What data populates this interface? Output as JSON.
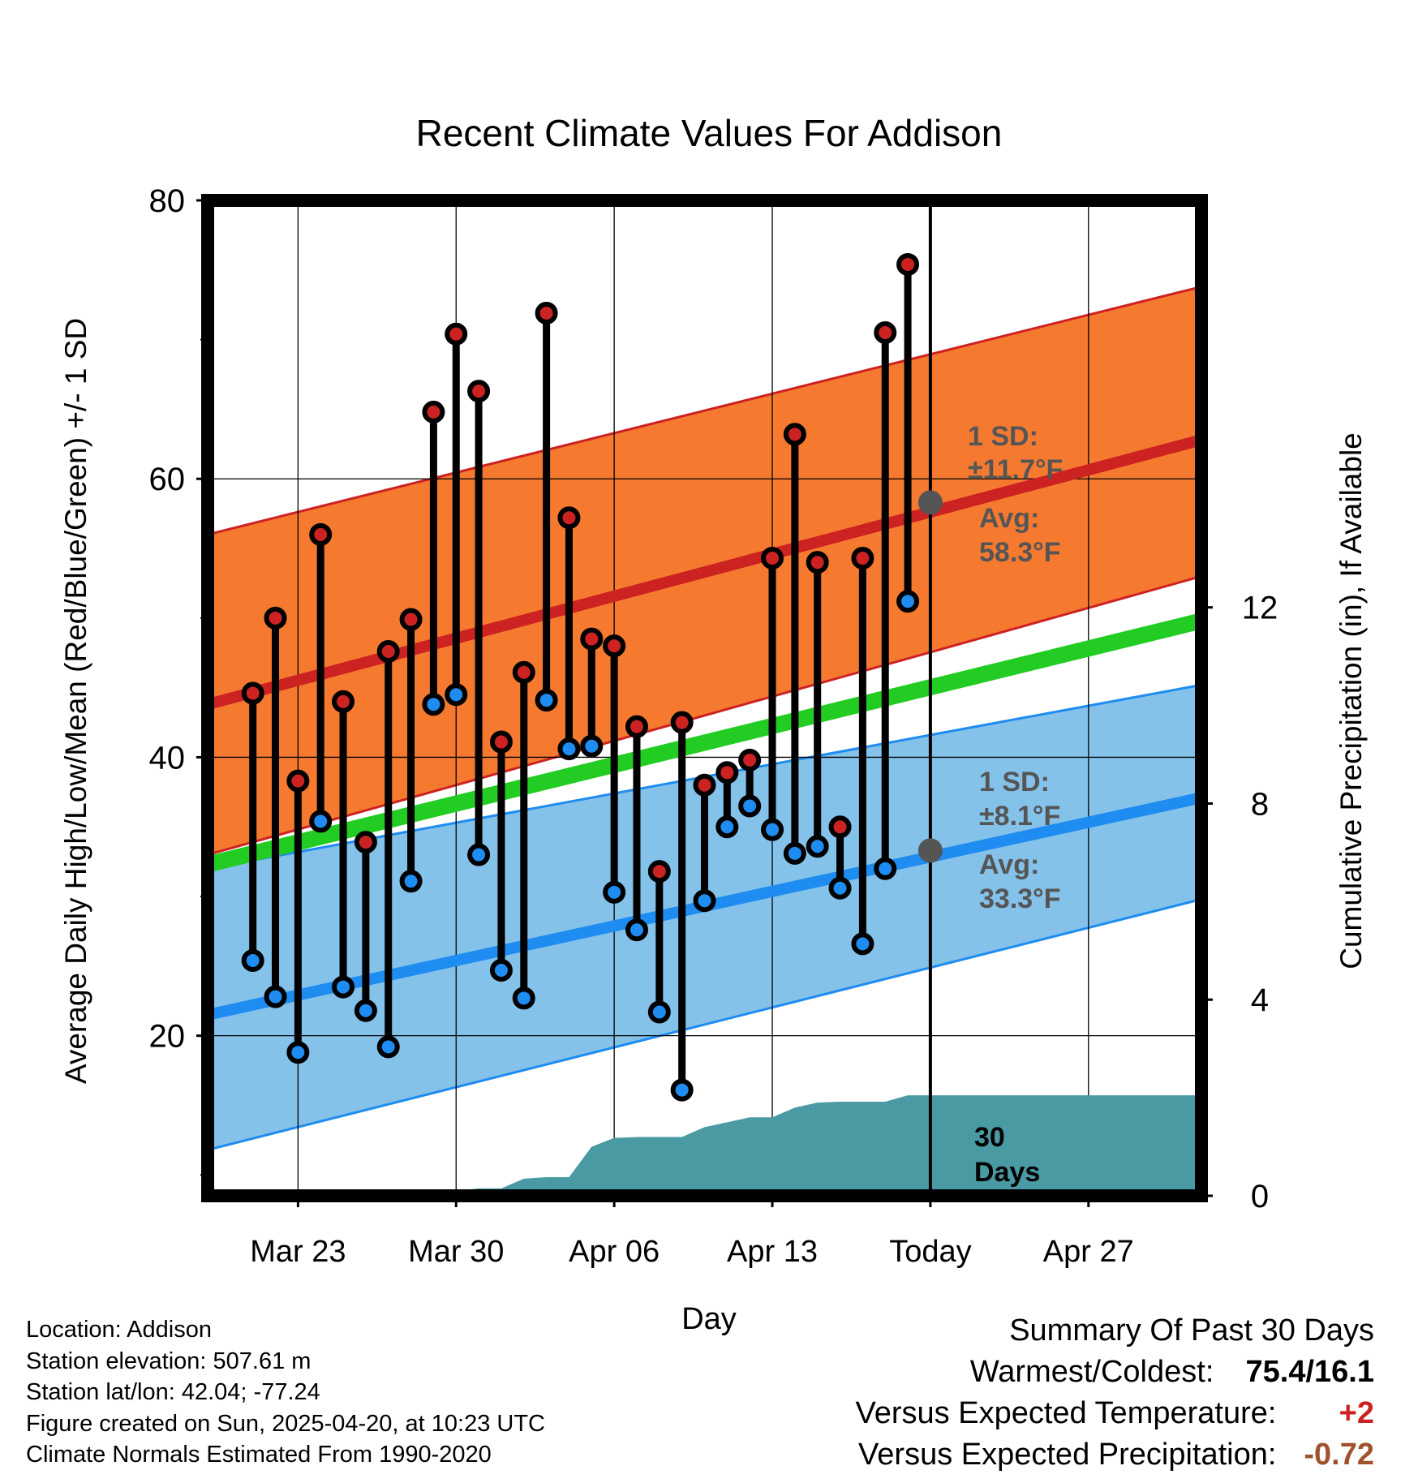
{
  "chart_data": {
    "type": "line",
    "title": "Recent Climate Values For Addison",
    "xlabel": "Day",
    "ylabel": "Average Daily High/Low/Mean (Red/Blue/Green) +/- 1 SD",
    "y2label": "Cumulative Precipitation (in), If Available",
    "xlim": [
      "2025-03-19",
      "2025-05-02"
    ],
    "ylim": [
      8.5,
      80
    ],
    "y2lim": [
      0,
      20.3
    ],
    "y_ticks": [
      20,
      40,
      60,
      80
    ],
    "y2_ticks": [
      0,
      4,
      8,
      12
    ],
    "x_ticks": [
      {
        "date": "2025-03-23",
        "label": "Mar 23"
      },
      {
        "date": "2025-03-30",
        "label": "Mar 30"
      },
      {
        "date": "2025-04-06",
        "label": "Apr 06"
      },
      {
        "date": "2025-04-13",
        "label": "Apr 13"
      },
      {
        "date": "2025-04-20",
        "label": "Today"
      },
      {
        "date": "2025-04-27",
        "label": "Apr 27"
      }
    ],
    "grid": true,
    "today": "2025-04-20",
    "colors": {
      "high": "#cc2222",
      "low": "#1e8cf0",
      "mean": "#22cc22",
      "high_band": "#f57a30",
      "low_band": "#84c2ea",
      "precip": "#4a9aa3",
      "annotation": "#555555"
    },
    "daily_observations": {
      "dates": [
        "2025-03-21",
        "2025-03-22",
        "2025-03-23",
        "2025-03-24",
        "2025-03-25",
        "2025-03-26",
        "2025-03-27",
        "2025-03-28",
        "2025-03-29",
        "2025-03-30",
        "2025-03-31",
        "2025-04-01",
        "2025-04-02",
        "2025-04-03",
        "2025-04-04",
        "2025-04-05",
        "2025-04-06",
        "2025-04-07",
        "2025-04-08",
        "2025-04-09",
        "2025-04-10",
        "2025-04-11",
        "2025-04-12",
        "2025-04-13",
        "2025-04-14",
        "2025-04-15",
        "2025-04-16",
        "2025-04-17",
        "2025-04-18",
        "2025-04-19"
      ],
      "high": [
        44.6,
        50.0,
        38.3,
        56.0,
        44.0,
        33.9,
        47.6,
        49.9,
        64.8,
        70.4,
        66.3,
        41.1,
        46.1,
        71.9,
        57.2,
        48.5,
        48.0,
        42.2,
        31.8,
        42.5,
        38.0,
        38.9,
        39.8,
        54.3,
        63.2,
        54.0,
        35.0,
        54.3,
        70.5,
        75.4
      ],
      "low": [
        25.4,
        22.8,
        18.8,
        35.4,
        23.5,
        21.8,
        19.2,
        31.1,
        43.8,
        44.5,
        33.0,
        24.7,
        22.7,
        44.1,
        40.6,
        40.8,
        30.3,
        27.6,
        21.7,
        16.1,
        29.7,
        35.0,
        36.5,
        34.8,
        33.1,
        33.6,
        30.6,
        26.6,
        32.0,
        51.2
      ]
    },
    "normals": {
      "dates": [
        "2025-03-19",
        "2025-05-02"
      ],
      "high_mean": [
        43.8,
        62.8
      ],
      "high_upper": [
        56.0,
        73.8
      ],
      "high_lower": [
        33.0,
        53.0
      ],
      "mean": [
        32.3,
        49.8
      ],
      "low_mean": [
        21.5,
        37.1
      ],
      "low_upper": [
        32.0,
        45.2
      ],
      "low_lower": [
        11.8,
        29.8
      ]
    },
    "cumulative_precipitation": {
      "dates": [
        "2025-03-19",
        "2025-03-27",
        "2025-03-28",
        "2025-03-29",
        "2025-03-30",
        "2025-03-31",
        "2025-04-01",
        "2025-04-02",
        "2025-04-03",
        "2025-04-04",
        "2025-04-05",
        "2025-04-06",
        "2025-04-07",
        "2025-04-08",
        "2025-04-09",
        "2025-04-10",
        "2025-04-11",
        "2025-04-12",
        "2025-04-13",
        "2025-04-14",
        "2025-04-15",
        "2025-04-16",
        "2025-04-17",
        "2025-04-18",
        "2025-04-19",
        "2025-05-02"
      ],
      "values": [
        0.0,
        0.0,
        0.0,
        0.05,
        0.1,
        0.15,
        0.15,
        0.35,
        0.38,
        0.38,
        1.0,
        1.18,
        1.2,
        1.2,
        1.2,
        1.4,
        1.5,
        1.6,
        1.6,
        1.8,
        1.9,
        1.92,
        1.92,
        1.92,
        2.05,
        2.05
      ]
    },
    "annotations": {
      "high_sd_label": "1 SD:",
      "high_sd_value": "±11.7°F",
      "high_avg_label": "Avg:",
      "high_avg_value": "58.3°F",
      "high_avg": 58.3,
      "low_sd_label": "1 SD:",
      "low_sd_value": "±8.1°F",
      "low_avg_label": "Avg:",
      "low_avg_value": "33.3°F",
      "low_avg": 33.3,
      "days_line1": "30",
      "days_line2": "Days"
    }
  },
  "footer": {
    "location": "Location: Addison",
    "elevation": "Station elevation: 507.61 m",
    "latlon": "Station lat/lon: 42.04; -77.24",
    "created": "Figure created on Sun, 2025-04-20, at 10:23 UTC",
    "normals": "Climate Normals Estimated From 1990-2020"
  },
  "summary": {
    "title": "Summary Of Past 30 Days",
    "warm_cold_label": "Warmest/Coldest:",
    "warm_cold_value": "75.4/16.1",
    "temp_label": "Versus Expected Temperature:",
    "temp_value": "+2",
    "temp_color": "#cc2222",
    "precip_label": "Versus Expected Precipitation:",
    "precip_value": "-0.72",
    "precip_color": "#a0522d"
  }
}
